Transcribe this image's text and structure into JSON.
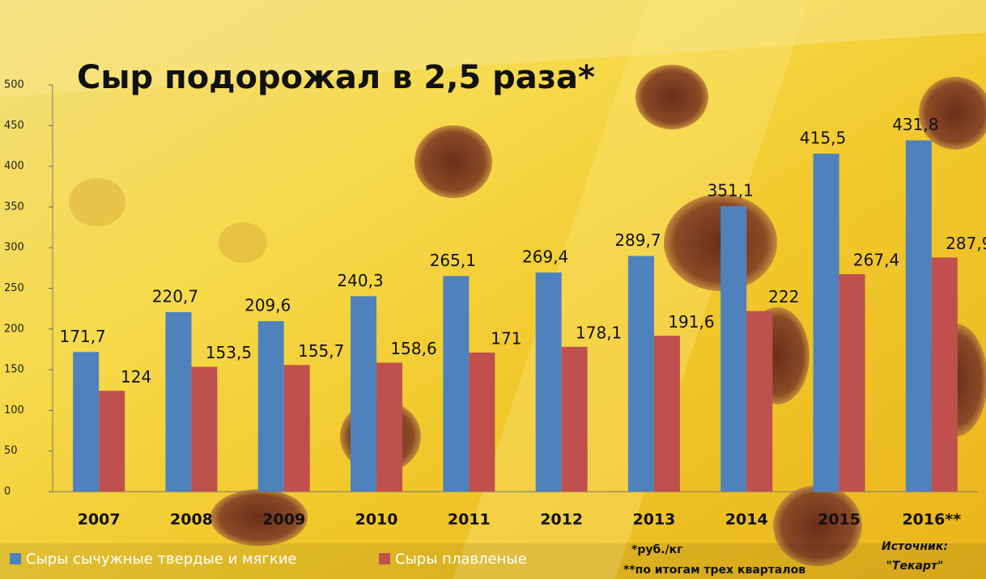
{
  "chart_data": {
    "type": "bar",
    "title": "Сыр подорожал в 2,5 раза*",
    "categories": [
      "2007",
      "2008",
      "2009",
      "2010",
      "2011",
      "2012",
      "2013",
      "2014",
      "2015",
      "2016**"
    ],
    "series": [
      {
        "name": "Сыры сычужные твердые и мягкие",
        "color": "#4f81bd",
        "values": [
          171.7,
          220.7,
          209.6,
          240.3,
          265.1,
          269.4,
          289.7,
          351.1,
          415.5,
          431.8
        ],
        "value_labels": [
          "171,7",
          "220,7",
          "209,6",
          "240,3",
          "265,1",
          "269,4",
          "289,7",
          "351,1",
          "415,5",
          "431,8"
        ]
      },
      {
        "name": "Сыры плавленые",
        "color": "#c0504d",
        "values": [
          124,
          153.5,
          155.7,
          158.6,
          171,
          178.1,
          191.6,
          222,
          267.4,
          287.9
        ],
        "value_labels": [
          "124",
          "153,5",
          "155,7",
          "158,6",
          "171",
          "178,1",
          "191,6",
          "222",
          "267,4",
          "287,9"
        ]
      }
    ],
    "ylim": [
      0,
      500
    ],
    "yticks": [
      0,
      50,
      100,
      150,
      200,
      250,
      300,
      350,
      400,
      450,
      500
    ],
    "footnotes": [
      "*руб./кг",
      "**по итогам трех кварталов"
    ],
    "source": [
      "Источник:",
      "\"Текарт\""
    ]
  }
}
